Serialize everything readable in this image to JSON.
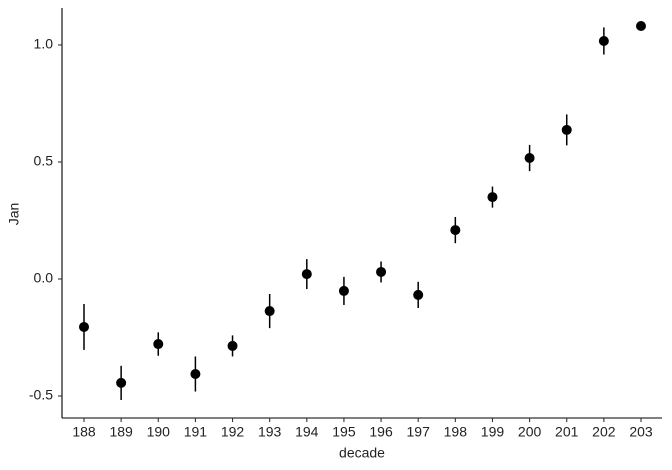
{
  "chart_data": {
    "type": "pointrange",
    "x_label": "decade",
    "y_label": "Jan",
    "categories": [
      "188",
      "189",
      "190",
      "191",
      "192",
      "193",
      "194",
      "195",
      "196",
      "197",
      "198",
      "199",
      "200",
      "201",
      "202",
      "203"
    ],
    "values": [
      -0.205,
      -0.444,
      -0.278,
      -0.406,
      -0.286,
      -0.137,
      0.021,
      -0.051,
      0.03,
      -0.068,
      0.209,
      0.35,
      0.517,
      0.637,
      1.017,
      1.081
    ],
    "errors": [
      0.098,
      0.073,
      0.05,
      0.075,
      0.045,
      0.073,
      0.064,
      0.06,
      0.045,
      0.056,
      0.056,
      0.045,
      0.056,
      0.066,
      0.058,
      null
    ],
    "color": "#000000",
    "ylim": [
      -0.594,
      1.158
    ],
    "yticks": [
      -0.5,
      {
        "value": 0,
        "label": "0.0"
      },
      0.5,
      {
        "value": 1,
        "label": "1.0"
      }
    ],
    "grid": false
  }
}
